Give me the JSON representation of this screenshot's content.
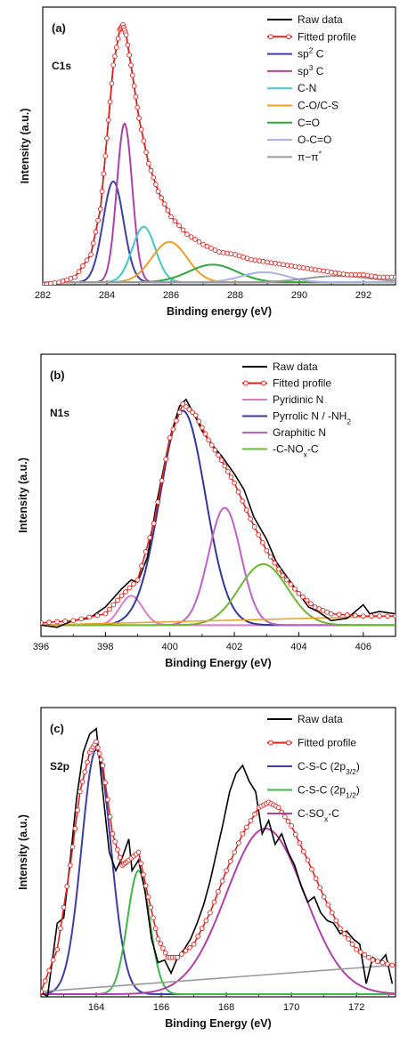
{
  "chart_data": [
    {
      "type": "line",
      "panel_label": "(a)",
      "core_label": "C1s",
      "xlabel": "Binding energy (eV)",
      "ylabel": "Intensity (a.u.)",
      "xlim": [
        282,
        293
      ],
      "ylim": [
        0,
        1.1
      ],
      "xticks": [
        282,
        284,
        286,
        288,
        290,
        292
      ],
      "legend_position": "top-right",
      "grid": false,
      "series": [
        {
          "name": "Raw data",
          "color": "#000000",
          "style": "raw",
          "x": [
            282,
            282.5,
            283,
            283.5,
            283.8,
            284,
            284.2,
            284.4,
            284.5,
            284.6,
            284.8,
            285,
            285.3,
            285.6,
            286,
            286.5,
            287,
            287.5,
            288,
            288.5,
            289,
            289.5,
            290,
            290.5,
            291,
            291.5,
            292,
            292.5,
            293
          ],
          "y": [
            0,
            0.01,
            0.03,
            0.12,
            0.3,
            0.58,
            0.87,
            1.01,
            1.03,
            0.99,
            0.83,
            0.66,
            0.48,
            0.37,
            0.27,
            0.2,
            0.16,
            0.13,
            0.12,
            0.1,
            0.09,
            0.08,
            0.07,
            0.06,
            0.05,
            0.04,
            0.04,
            0.03,
            0.03
          ]
        },
        {
          "name": "Fitted profile",
          "color": "#e3221e",
          "style": "fit",
          "x": [
            282,
            282.5,
            283,
            283.5,
            283.8,
            284,
            284.2,
            284.4,
            284.5,
            284.6,
            284.8,
            285,
            285.3,
            285.6,
            286,
            286.5,
            287,
            287.5,
            288,
            288.5,
            289,
            289.5,
            290,
            290.5,
            291,
            291.5,
            292,
            292.5,
            293
          ],
          "y": [
            0,
            0.01,
            0.03,
            0.12,
            0.3,
            0.58,
            0.87,
            1.01,
            1.03,
            0.99,
            0.83,
            0.66,
            0.48,
            0.37,
            0.27,
            0.2,
            0.16,
            0.13,
            0.12,
            0.1,
            0.09,
            0.08,
            0.07,
            0.06,
            0.05,
            0.04,
            0.04,
            0.03,
            0.03
          ]
        },
        {
          "name": "sp2 C",
          "label_base": "sp",
          "label_sup": "2",
          "label_tail": " C",
          "color": "#3b3fa6",
          "style": "peak",
          "center": 284.2,
          "height": 0.4,
          "width": 0.32
        },
        {
          "name": "sp3 C",
          "label_base": "sp",
          "label_sup": "3",
          "label_tail": " C",
          "color": "#b040a8",
          "style": "peak",
          "center": 284.55,
          "height": 0.63,
          "width": 0.24
        },
        {
          "name": "C-N",
          "color": "#3ec8cc",
          "style": "peak",
          "center": 285.15,
          "height": 0.22,
          "width": 0.36
        },
        {
          "name": "C-O/C-S",
          "color": "#f0a020",
          "style": "peak",
          "center": 285.95,
          "height": 0.16,
          "width": 0.55
        },
        {
          "name": "C=O",
          "color": "#2fa83a",
          "style": "peak",
          "center": 287.3,
          "height": 0.07,
          "width": 0.75
        },
        {
          "name": "O-C=O",
          "color": "#aab0e8",
          "style": "peak",
          "center": 288.9,
          "height": 0.04,
          "width": 0.7
        },
        {
          "name": "π-π*",
          "label_base": "π−π",
          "label_sup": "*",
          "color": "#9a9a9a",
          "style": "peak",
          "center": 291.2,
          "height": 0.025,
          "width": 1.0
        }
      ]
    },
    {
      "type": "line",
      "panel_label": "(b)",
      "core_label": "N1s",
      "xlabel": "Binding Energy (eV)",
      "ylabel": "Intensity (a.u.)",
      "xlim": [
        396,
        407
      ],
      "ylim": [
        -0.05,
        1.2
      ],
      "xticks": [
        396,
        398,
        400,
        402,
        404,
        406
      ],
      "legend_position": "top-right",
      "grid": false,
      "series": [
        {
          "name": "Raw data",
          "color": "#000000",
          "style": "raw",
          "x": [
            396,
            396.5,
            397,
            397.5,
            398,
            398.5,
            398.8,
            399,
            399.3,
            399.6,
            400,
            400.3,
            400.5,
            400.8,
            401,
            401.3,
            401.6,
            402,
            402.3,
            402.6,
            403,
            403.3,
            403.6,
            404,
            404.3,
            404.6,
            405,
            405.5,
            406,
            406.2,
            406.5,
            407
          ],
          "y": [
            0,
            -0.01,
            0.02,
            0.03,
            0.08,
            0.16,
            0.2,
            0.19,
            0.3,
            0.55,
            0.83,
            0.97,
            1.0,
            0.92,
            0.86,
            0.8,
            0.75,
            0.67,
            0.6,
            0.48,
            0.38,
            0.28,
            0.22,
            0.14,
            0.08,
            0.06,
            0.02,
            0.03,
            0.09,
            0.05,
            0.06,
            0.05
          ]
        },
        {
          "name": "Fitted profile",
          "color": "#e3221e",
          "style": "fit",
          "x": [
            396,
            397,
            398,
            398.5,
            399,
            399.5,
            400,
            400.4,
            400.8,
            401.2,
            401.6,
            402,
            402.5,
            403,
            403.5,
            404,
            404.5,
            405,
            406,
            407
          ],
          "y": [
            0.01,
            0.02,
            0.05,
            0.13,
            0.2,
            0.45,
            0.83,
            0.98,
            0.93,
            0.82,
            0.73,
            0.63,
            0.47,
            0.33,
            0.22,
            0.14,
            0.08,
            0.05,
            0.04,
            0.04
          ]
        },
        {
          "name": "Pyridinic N",
          "color": "#e07ac8",
          "style": "peak",
          "center": 398.8,
          "height": 0.13,
          "width": 0.35
        },
        {
          "name": "Pyrrolic N / -NH2",
          "label_base": "Pyrrolic N / -NH",
          "label_sub": "2",
          "color": "#3038a0",
          "style": "peak",
          "center": 400.4,
          "height": 0.95,
          "width": 0.7
        },
        {
          "name": "Graphitic N",
          "color": "#c060c8",
          "style": "peak",
          "center": 401.7,
          "height": 0.52,
          "width": 0.5
        },
        {
          "name": "-C-NOx-C",
          "label_base": "-C-NO",
          "label_sub": "x",
          "label_tail": "-C",
          "color": "#6cb830",
          "style": "peak",
          "center": 402.9,
          "height": 0.27,
          "width": 0.75
        },
        {
          "name": "",
          "color": "#f0a020",
          "style": "baseline",
          "x": [
            396,
            407
          ],
          "y": [
            0.0,
            0.04
          ]
        }
      ]
    },
    {
      "type": "line",
      "panel_label": "(c)",
      "core_label": "S2p",
      "xlabel": "Binding Energy (eV)",
      "ylabel": "Intensity (a.u.)",
      "xlim": [
        162.3,
        173.2
      ],
      "ylim": [
        0,
        1.1
      ],
      "xticks": [
        164,
        166,
        168,
        170,
        172
      ],
      "legend_position": "top-right",
      "grid": false,
      "series": [
        {
          "name": "Raw data",
          "color": "#000000",
          "style": "raw",
          "x": [
            162.3,
            162.5,
            162.8,
            163.0,
            163.2,
            163.4,
            163.6,
            163.8,
            164.0,
            164.2,
            164.4,
            164.6,
            164.8,
            165.0,
            165.1,
            165.3,
            165.5,
            165.7,
            165.9,
            166.1,
            166.3,
            166.5,
            166.7,
            166.9,
            167.1,
            167.3,
            167.5,
            167.7,
            167.9,
            168.1,
            168.3,
            168.5,
            168.7,
            168.9,
            169.1,
            169.3,
            169.5,
            169.7,
            169.9,
            170.1,
            170.3,
            170.5,
            170.7,
            170.9,
            171.1,
            171.3,
            171.5,
            171.7,
            171.9,
            172.1,
            172.3,
            172.5,
            172.7,
            172.9,
            173.1
          ],
          "y": [
            0.02,
            0.0,
            0.28,
            0.3,
            0.52,
            0.76,
            0.93,
            1.0,
            1.02,
            0.78,
            0.55,
            0.48,
            0.53,
            0.6,
            0.48,
            0.52,
            0.4,
            0.22,
            0.13,
            0.14,
            0.09,
            0.15,
            0.18,
            0.22,
            0.28,
            0.35,
            0.44,
            0.55,
            0.66,
            0.78,
            0.85,
            0.88,
            0.82,
            0.78,
            0.62,
            0.67,
            0.58,
            0.62,
            0.55,
            0.5,
            0.42,
            0.36,
            0.38,
            0.32,
            0.29,
            0.28,
            0.24,
            0.25,
            0.22,
            0.2,
            0.05,
            0.15,
            0.13,
            0.16,
            0.05
          ]
        },
        {
          "name": "Fitted profile",
          "color": "#e3221e",
          "style": "fit",
          "x": [
            162.3,
            162.8,
            163.2,
            163.5,
            163.8,
            164.0,
            164.2,
            164.5,
            164.8,
            165.0,
            165.3,
            165.6,
            165.9,
            166.2,
            166.5,
            167.0,
            167.5,
            168.0,
            168.5,
            169.0,
            169.3,
            169.6,
            170.0,
            170.5,
            171.0,
            171.5,
            172.0,
            172.5,
            173.1
          ],
          "y": [
            0.02,
            0.18,
            0.5,
            0.78,
            0.93,
            0.97,
            0.88,
            0.62,
            0.5,
            0.52,
            0.55,
            0.38,
            0.22,
            0.15,
            0.15,
            0.2,
            0.32,
            0.48,
            0.62,
            0.72,
            0.74,
            0.72,
            0.65,
            0.52,
            0.38,
            0.26,
            0.18,
            0.14,
            0.12
          ]
        },
        {
          "name": "C-S-C (2p3/2)",
          "label_base": "C-S-C (2p",
          "label_sub": "3/2",
          "label_tail": ")",
          "color": "#3b3fa6",
          "style": "peak",
          "center": 164.0,
          "height": 0.93,
          "width": 0.45
        },
        {
          "name": "C-S-C (2p1/2)",
          "label_base": "C-S-C (2p",
          "label_sub": "1/2",
          "label_tail": ")",
          "color": "#3db84a",
          "style": "peak",
          "center": 165.3,
          "height": 0.47,
          "width": 0.34
        },
        {
          "name": "C-SOx-C",
          "label_base": "C-SO",
          "label_sub": "x",
          "label_tail": "-C",
          "color": "#b040a8",
          "style": "peak",
          "center": 169.2,
          "height": 0.63,
          "width": 1.2
        },
        {
          "name": "",
          "color": "#9a9a9a",
          "style": "baseline",
          "x": [
            162.3,
            173.1
          ],
          "y": [
            0.02,
            0.12
          ]
        }
      ]
    }
  ]
}
